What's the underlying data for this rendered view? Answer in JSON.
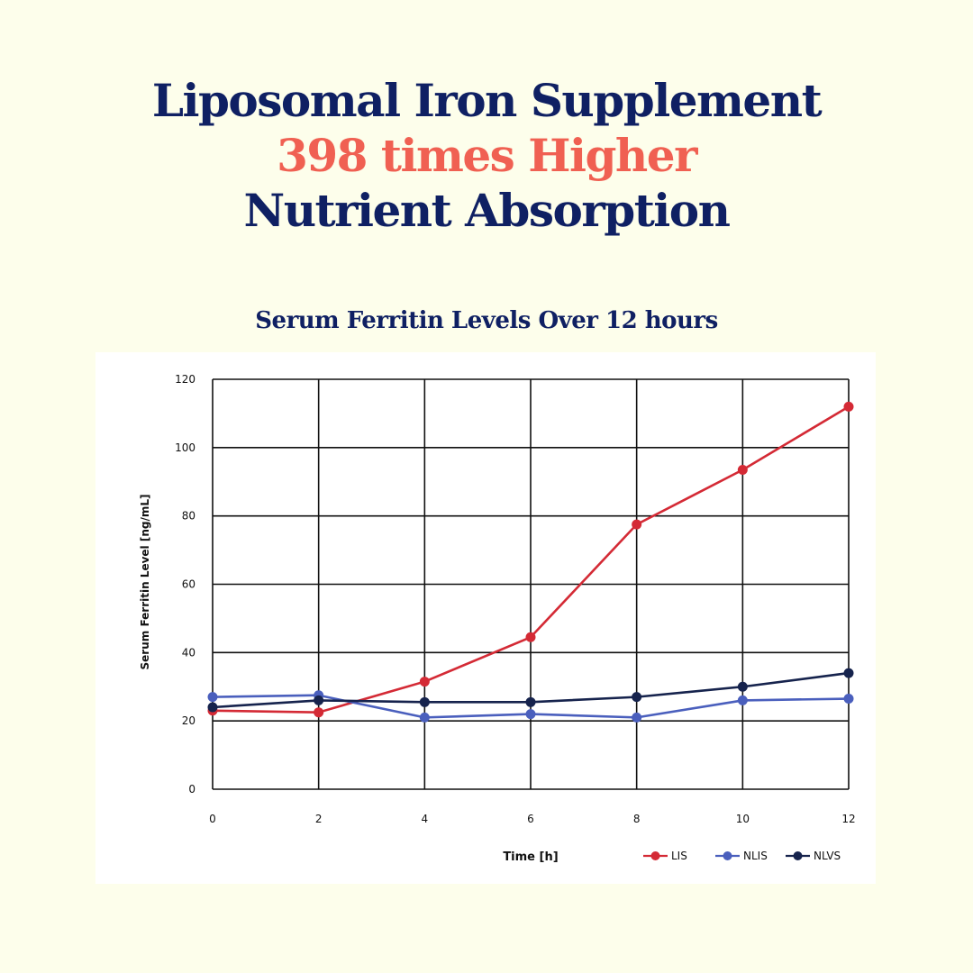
{
  "headline": {
    "line1": "Liposomal Iron Supplement",
    "line2": "398 times Higher",
    "line3": "Nutrient Absorption"
  },
  "colors": {
    "background": "#fdfeeb",
    "navy": "#0f2063",
    "accent": "#f06052"
  },
  "chart_data": {
    "type": "line",
    "title": "Serum Ferritin Levels Over  12 hours",
    "xlabel": "Time [h]",
    "ylabel": "Serum Ferritin Level [ng/mL]",
    "x": [
      0,
      2,
      4,
      6,
      8,
      10,
      12
    ],
    "xticks": [
      "0",
      "2",
      "4",
      "6",
      "8",
      "10",
      "12"
    ],
    "yticks": [
      "0",
      "20",
      "40",
      "60",
      "80",
      "100",
      "120"
    ],
    "xlim": [
      0,
      12
    ],
    "ylim": [
      0,
      120
    ],
    "grid": true,
    "legend_position": "bottom-right",
    "series": [
      {
        "name": "LIS",
        "color": "#d42a35",
        "values": [
          23,
          22.5,
          31.5,
          44.5,
          77.5,
          93.5,
          112
        ]
      },
      {
        "name": "NLIS",
        "color": "#4a5fbd",
        "values": [
          27,
          27.5,
          21,
          22,
          21,
          26,
          26.5
        ]
      },
      {
        "name": "NLVS",
        "color": "#16234d",
        "values": [
          24,
          26,
          25.5,
          25.5,
          27,
          30,
          34
        ]
      }
    ]
  }
}
